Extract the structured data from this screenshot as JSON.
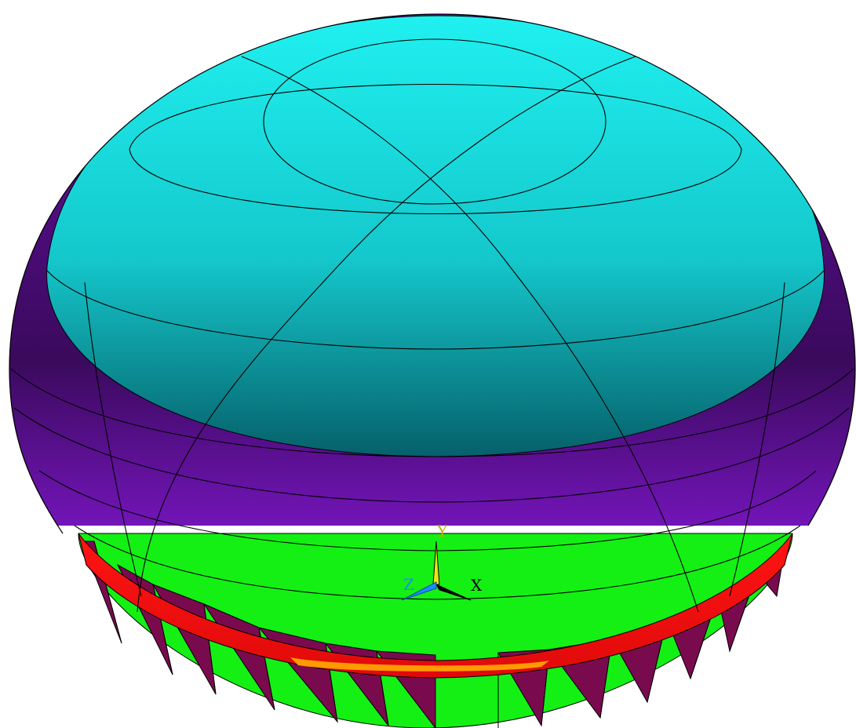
{
  "viewport": {
    "background": "#ffffff",
    "edge_color": "#000000"
  },
  "model": {
    "cap_color": "#19e6e6",
    "cap_dark": "#0a7a82",
    "body_color": "#8a19d6",
    "body_dark": "#3c0a5e",
    "ring_color": "#ff1414",
    "ring_dark": "#b40000",
    "skirt_green": "#14f014",
    "skirt_maroon": "#7a0a4e",
    "inner_orange": "#ff9a00"
  },
  "triad": {
    "x_label": "X",
    "y_label": "Y",
    "z_label": "Z",
    "x_color": "#000000",
    "y_color": "#e6e614",
    "z_color": "#1e8cff",
    "y_label_color": "#b4b400",
    "z_label_color": "#1e8cff"
  }
}
